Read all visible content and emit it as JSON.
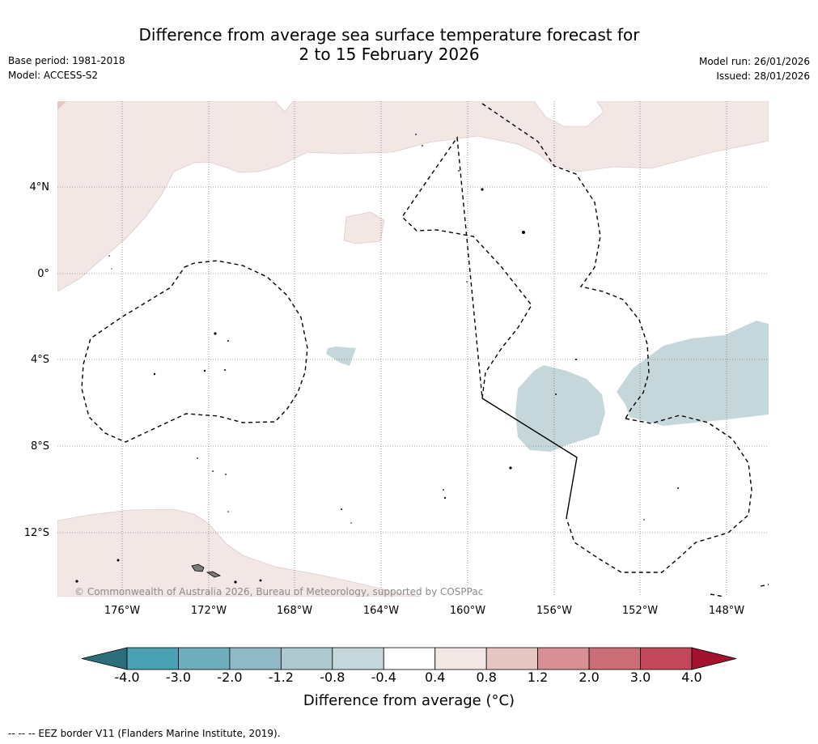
{
  "header": {
    "title_line1": "Difference from average sea surface temperature forecast for",
    "title_line2": "2 to 15 February 2026",
    "base_period": "Base period: 1981-2018",
    "model": "Model: ACCESS-S2",
    "model_run": "Model run: 26/01/2026",
    "issued": "Issued: 28/01/2026"
  },
  "map": {
    "lat_labels": [
      "4°N",
      "0°",
      "4°S",
      "8°S",
      "12°S"
    ],
    "lon_labels": [
      "176°W",
      "172°W",
      "168°W",
      "164°W",
      "160°W",
      "156°W",
      "152°W",
      "148°W"
    ],
    "copyright": "© Commonwealth of Australia 2026, Bureau of Meteorology, supported by COSPPac",
    "colors": {
      "warm_0_4_0_8": "#f3e7e6",
      "cool_m0_8_m0_4": "#c6d7dc",
      "coastline": "#000000",
      "eez_border": "#000000",
      "grid": "#555555"
    }
  },
  "colorbar": {
    "tick_labels": [
      "-4.0",
      "-3.0",
      "-2.0",
      "-1.2",
      "-0.8",
      "-0.4",
      "0.4",
      "0.8",
      "1.2",
      "2.0",
      "3.0",
      "4.0"
    ],
    "colors": [
      "#2e6e7a",
      "#4aa1b3",
      "#6eaebd",
      "#8fb9c4",
      "#adc8cf",
      "#c6d7dc",
      "#ffffff",
      "#f3e7e6",
      "#e6c6c2",
      "#d98f96",
      "#cc6e78",
      "#c2495a",
      "#a3122f"
    ],
    "label": "Difference from average (°C)"
  },
  "footnote": "--  --  -- EEZ border V11 (Flanders Marine Institute, 2019)."
}
